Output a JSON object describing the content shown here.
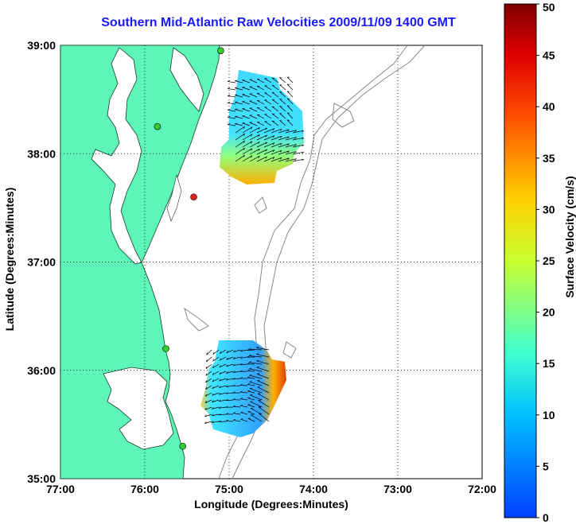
{
  "title": "Southern Mid-Atlantic Raw Velocities 2009/11/09 1400 GMT",
  "map": {
    "xlabel": "Longitude (Degrees:Minutes)",
    "ylabel": "Latitude (Degrees:Minutes)",
    "lon_range": [
      -77,
      -72
    ],
    "lat_range": [
      35,
      39
    ],
    "x_ticks": [
      "77:00",
      "76:00",
      "75:00",
      "74:00",
      "73:00",
      "72:00"
    ],
    "y_ticks": [
      "35:00",
      "36:00",
      "37:00",
      "38:00",
      "39:00"
    ],
    "land_color": "#5ef5b8",
    "grid": "dotted"
  },
  "colorbar": {
    "label": "Surface Velocity (cm/s)",
    "min": 0,
    "max": 50,
    "ticks": [
      "0",
      "5",
      "10",
      "15",
      "20",
      "25",
      "30",
      "35",
      "40",
      "45",
      "50"
    ],
    "colormap": "jet"
  },
  "stations": [
    {
      "name": "station-north",
      "lon": -75.1,
      "lat": 38.95,
      "color": "#33cc33"
    },
    {
      "name": "station-delaware-bay",
      "lon": -75.85,
      "lat": 38.25,
      "color": "#33cc33"
    },
    {
      "name": "station-eastern-shore",
      "lon": -75.42,
      "lat": 37.6,
      "color": "#dd2222"
    },
    {
      "name": "station-outer-banks-n",
      "lon": -75.75,
      "lat": 36.2,
      "color": "#33cc33"
    },
    {
      "name": "station-outer-banks-s",
      "lon": -75.55,
      "lat": 35.3,
      "color": "#33cc33"
    }
  ]
}
